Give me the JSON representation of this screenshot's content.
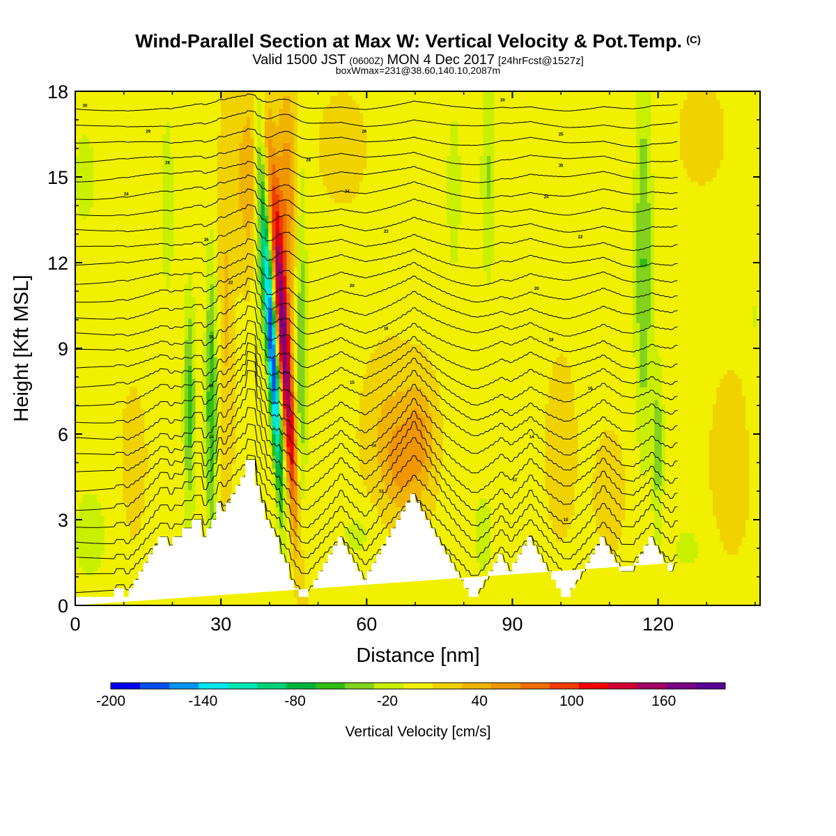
{
  "chart_data": {
    "type": "heatmap",
    "title": "Wind-Parallel Section at Max W: Vertical Velocity & Pot.Temp.",
    "title_mark": "(C)",
    "subtitle_main": "Valid 1500 JST",
    "subtitle_z": "(0600Z)",
    "subtitle_date": "MON 4 Dec 2017",
    "subtitle_fcst": "[24hrFcst@1527z]",
    "subtitle_box": "boxWmax=231@38.60,140.10,2087m",
    "xlabel": "Distance [nm]",
    "ylabel": "Height [Kft MSL]",
    "xlim": [
      0,
      141
    ],
    "ylim": [
      0,
      18
    ],
    "x_ticks": [
      0,
      30,
      60,
      90,
      120
    ],
    "y_ticks": [
      0,
      3,
      6,
      9,
      12,
      15,
      18
    ],
    "colorbar": {
      "label": "Vertical Velocity [cm/s]",
      "min": -200,
      "max": 200,
      "tick_values": [
        -200,
        -140,
        -80,
        -20,
        40,
        100,
        160
      ],
      "tick_labels": [
        "-200",
        "-140",
        "-80",
        "-20",
        "40",
        "100",
        "160"
      ],
      "colors": [
        "#0000f0",
        "#0050f0",
        "#0096f0",
        "#00e6f0",
        "#00e6b4",
        "#00d278",
        "#00b43c",
        "#32be14",
        "#82d21e",
        "#c8f000",
        "#f0f000",
        "#f0d200",
        "#f0b400",
        "#f09600",
        "#f06e00",
        "#f03c00",
        "#f00000",
        "#d20032",
        "#a00064",
        "#780082",
        "#5a0096"
      ]
    },
    "terrain": {
      "x": [
        0,
        8,
        8,
        10,
        10,
        11,
        11,
        12,
        12,
        13,
        13,
        14,
        14,
        15,
        15,
        16,
        16,
        17,
        17,
        18,
        18,
        19,
        19,
        20,
        20,
        22,
        22,
        24,
        24,
        26,
        26,
        27,
        27,
        28,
        28,
        29,
        29,
        30,
        30,
        31,
        31,
        32,
        32,
        33,
        33,
        34,
        34,
        35,
        35,
        36,
        36,
        37,
        37,
        38,
        38,
        39,
        39,
        40,
        40,
        41,
        41,
        42,
        42,
        43,
        43,
        44,
        44,
        45,
        45,
        46,
        46,
        47,
        47,
        48,
        48,
        49,
        49,
        50,
        50,
        51,
        51,
        52,
        52,
        53,
        53,
        54,
        54,
        55,
        55,
        56,
        56,
        57,
        57,
        58,
        58,
        59,
        59,
        60,
        60,
        61,
        61,
        62,
        62,
        63,
        63,
        64,
        64,
        65,
        65,
        66,
        66,
        67,
        67,
        68,
        68,
        69,
        69,
        70,
        70,
        71,
        71,
        72,
        72,
        73,
        73,
        74,
        74,
        75,
        75,
        76,
        76,
        77,
        77,
        78,
        78,
        79,
        79,
        80,
        80,
        81,
        81,
        82,
        82,
        83,
        83,
        84,
        84,
        85,
        85,
        86,
        86,
        87,
        87,
        88,
        88,
        89,
        89,
        90,
        90,
        91,
        91,
        92,
        92,
        93,
        93,
        94,
        94,
        95,
        95,
        96,
        96,
        97,
        97,
        98,
        98,
        99,
        99,
        100,
        100,
        101,
        101,
        102,
        102,
        103,
        103,
        104,
        104,
        105,
        105,
        106,
        106,
        107,
        107,
        108,
        108,
        109,
        109,
        110,
        110,
        111,
        111,
        112,
        112,
        113,
        113,
        114,
        114,
        115,
        115,
        116,
        116,
        117,
        117,
        118,
        118,
        119,
        119,
        120,
        120,
        121,
        121,
        122,
        122,
        123,
        123,
        124,
        124,
        125,
        125,
        126,
        126,
        127,
        127,
        128,
        128,
        129,
        129,
        130,
        130,
        131,
        131,
        132,
        132,
        133,
        133,
        134,
        134,
        135,
        135,
        136,
        136,
        137,
        137,
        138,
        138,
        139,
        139,
        140,
        140,
        141
      ],
      "h": [
        0.3,
        0.3,
        0.6,
        0.6,
        0.3,
        0.3,
        0.6,
        0.6,
        0.9,
        0.9,
        1.2,
        1.2,
        1.5,
        1.5,
        1.8,
        1.8,
        2.1,
        2.1,
        2.4,
        2.4,
        2.4,
        2.4,
        2.1,
        2.1,
        2.4,
        2.4,
        2.7,
        2.7,
        3.0,
        3.0,
        2.4,
        2.4,
        2.7,
        2.7,
        3.0,
        3.0,
        3.6,
        3.6,
        3.3,
        3.3,
        3.6,
        3.6,
        3.9,
        3.9,
        4.2,
        4.2,
        4.5,
        4.5,
        5.1,
        5.1,
        5.1,
        5.1,
        4.2,
        4.2,
        3.6,
        3.6,
        3.0,
        3.0,
        2.7,
        2.7,
        2.4,
        2.4,
        1.8,
        1.8,
        1.5,
        1.5,
        0.9,
        0.9,
        0.6,
        0.6,
        0.3,
        0.3,
        0.3,
        0.3,
        0.6,
        0.6,
        0.9,
        0.9,
        1.2,
        1.2,
        1.5,
        1.5,
        1.8,
        1.8,
        2.1,
        2.1,
        2.4,
        2.4,
        2.1,
        2.1,
        1.8,
        1.8,
        1.5,
        1.5,
        1.2,
        1.2,
        0.9,
        0.9,
        1.2,
        1.2,
        1.5,
        1.5,
        1.8,
        1.8,
        2.1,
        2.1,
        2.4,
        2.4,
        2.7,
        2.7,
        3.0,
        3.0,
        3.3,
        3.3,
        3.6,
        3.6,
        3.9,
        3.9,
        3.6,
        3.6,
        3.3,
        3.3,
        3.0,
        3.0,
        2.7,
        2.7,
        2.4,
        2.4,
        2.1,
        2.1,
        1.8,
        1.8,
        1.5,
        1.5,
        1.2,
        1.2,
        0.9,
        0.9,
        0.6,
        0.6,
        0.3,
        0.3,
        0.3,
        0.3,
        0.6,
        0.6,
        0.9,
        0.9,
        1.2,
        1.2,
        1.5,
        1.5,
        1.8,
        1.8,
        1.5,
        1.5,
        1.2,
        1.2,
        1.5,
        1.5,
        1.8,
        1.8,
        2.1,
        2.1,
        2.4,
        2.4,
        2.1,
        2.1,
        1.8,
        1.8,
        1.5,
        1.5,
        1.2,
        1.2,
        0.9,
        0.9,
        0.6,
        0.6,
        0.3,
        0.3,
        0.3,
        0.3,
        0.6,
        0.6,
        0.9,
        0.9,
        1.2,
        1.2,
        1.5,
        1.5,
        1.8,
        1.8,
        2.1,
        2.1,
        2.4,
        2.4,
        2.1,
        2.1,
        1.8,
        1.8,
        1.5,
        1.5,
        1.2,
        1.2,
        1.2,
        1.2,
        1.2,
        1.2,
        1.5,
        1.5,
        1.8,
        1.8,
        2.1,
        2.1,
        2.4,
        2.4,
        2.1,
        2.1,
        1.8,
        1.8,
        1.5,
        1.5,
        1.2,
        1.2,
        1.5,
        1.5
      ]
    },
    "features": [
      {
        "x": 40.5,
        "z": 9,
        "w": -190,
        "sx": 1.1,
        "sz": 5,
        "tilt": -0.35
      },
      {
        "x": 43,
        "z": 9,
        "w": 160,
        "sx": 1.3,
        "sz": 6,
        "tilt": -0.4
      },
      {
        "x": 43.5,
        "z": 14,
        "w": 60,
        "sx": 2.2,
        "sz": 4
      },
      {
        "x": 36,
        "z": 15,
        "w": 40,
        "sx": 3,
        "sz": 3
      },
      {
        "x": 46.5,
        "z": 9,
        "w": -50,
        "sx": 1.2,
        "sz": 7
      },
      {
        "x": 38,
        "z": 14,
        "w": -40,
        "sx": 1.2,
        "sz": 5
      },
      {
        "x": 28,
        "z": 7,
        "w": -70,
        "sx": 1.2,
        "sz": 5
      },
      {
        "x": 23.5,
        "z": 7,
        "w": -60,
        "sx": 1.2,
        "sz": 4
      },
      {
        "x": 31,
        "z": 10,
        "w": 25,
        "sx": 1.5,
        "sz": 7
      },
      {
        "x": 19,
        "z": 14,
        "w": -25,
        "sx": 1.5,
        "sz": 4
      },
      {
        "x": 65,
        "z": 6,
        "w": 30,
        "sx": 5,
        "sz": 2.5
      },
      {
        "x": 71,
        "z": 5.8,
        "w": 45,
        "sx": 3,
        "sz": 2
      },
      {
        "x": 67,
        "z": 4.8,
        "w": 30,
        "sx": 3,
        "sz": 1.5
      },
      {
        "x": 85,
        "z": 15,
        "w": -35,
        "sx": 1.5,
        "sz": 4
      },
      {
        "x": 78,
        "z": 14.5,
        "w": -30,
        "sx": 1.5,
        "sz": 3
      },
      {
        "x": 117,
        "z": 12,
        "w": -55,
        "sx": 1.8,
        "sz": 6.5
      },
      {
        "x": 120,
        "z": 5.5,
        "w": -45,
        "sx": 1.2,
        "sz": 3
      },
      {
        "x": 84,
        "z": 2.5,
        "w": -30,
        "sx": 2,
        "sz": 1.5
      },
      {
        "x": 3,
        "z": 2.5,
        "w": -25,
        "sx": 4,
        "sz": 2
      },
      {
        "x": 2,
        "z": 15,
        "w": -25,
        "sx": 2.5,
        "sz": 2
      },
      {
        "x": 126,
        "z": 2,
        "w": -20,
        "sx": 4,
        "sz": 1
      },
      {
        "x": 135,
        "z": 5,
        "w": 15,
        "sx": 4,
        "sz": 3
      },
      {
        "x": 100,
        "z": 5.5,
        "w": 15,
        "sx": 3,
        "sz": 3
      },
      {
        "x": 110,
        "z": 4,
        "w": 15,
        "sx": 3,
        "sz": 2
      },
      {
        "x": 129,
        "z": 16.5,
        "w": 18,
        "sx": 4,
        "sz": 1.5
      },
      {
        "x": 140,
        "z": 10,
        "w": -15,
        "sx": 1.5,
        "sz": 4
      },
      {
        "x": 58,
        "z": 2.5,
        "w": -20,
        "sx": 4,
        "sz": 1
      },
      {
        "x": 55,
        "z": 16,
        "w": 12,
        "sx": 5,
        "sz": 2
      },
      {
        "x": 12,
        "z": 5,
        "w": 10,
        "sx": 3,
        "sz": 3
      }
    ],
    "theta_contours": {
      "start_height": 0.3,
      "spacing": 0.61,
      "count": 29
    },
    "contour_labels": [
      {
        "text": "30",
        "x": 2,
        "z": 17.5
      },
      {
        "text": "29",
        "x": 15,
        "z": 16.6
      },
      {
        "text": "28",
        "x": 19,
        "z": 15.5
      },
      {
        "text": "24",
        "x": 10.5,
        "z": 14.4
      },
      {
        "text": "26",
        "x": 27,
        "z": 12.8
      },
      {
        "text": "22",
        "x": 32,
        "z": 11.3
      },
      {
        "text": "18",
        "x": 28,
        "z": 9.4
      },
      {
        "text": "16",
        "x": 28,
        "z": 7.7
      },
      {
        "text": "14",
        "x": 28,
        "z": 5.9
      },
      {
        "text": "30",
        "x": 88,
        "z": 17.7
      },
      {
        "text": "26",
        "x": 59.5,
        "z": 16.6
      },
      {
        "text": "28",
        "x": 48,
        "z": 15.6
      },
      {
        "text": "24",
        "x": 56,
        "z": 14.5
      },
      {
        "text": "23",
        "x": 64,
        "z": 13.1
      },
      {
        "text": "20",
        "x": 57,
        "z": 11.2
      },
      {
        "text": "16",
        "x": 64,
        "z": 9.7
      },
      {
        "text": "15",
        "x": 57,
        "z": 7.8
      },
      {
        "text": "14",
        "x": 61.5,
        "z": 5.6
      },
      {
        "text": "13",
        "x": 63,
        "z": 4.0
      },
      {
        "text": "25",
        "x": 100,
        "z": 16.5
      },
      {
        "text": "35",
        "x": 100,
        "z": 15.4
      },
      {
        "text": "24",
        "x": 97,
        "z": 14.3
      },
      {
        "text": "22",
        "x": 104,
        "z": 12.9
      },
      {
        "text": "20",
        "x": 95,
        "z": 11.1
      },
      {
        "text": "18",
        "x": 98,
        "z": 9.3
      },
      {
        "text": "16",
        "x": 106,
        "z": 7.6
      },
      {
        "text": "14",
        "x": 94,
        "z": 5.9
      },
      {
        "text": "12",
        "x": 90.5,
        "z": 4.4
      },
      {
        "text": "10",
        "x": 101,
        "z": 3.0
      }
    ]
  }
}
